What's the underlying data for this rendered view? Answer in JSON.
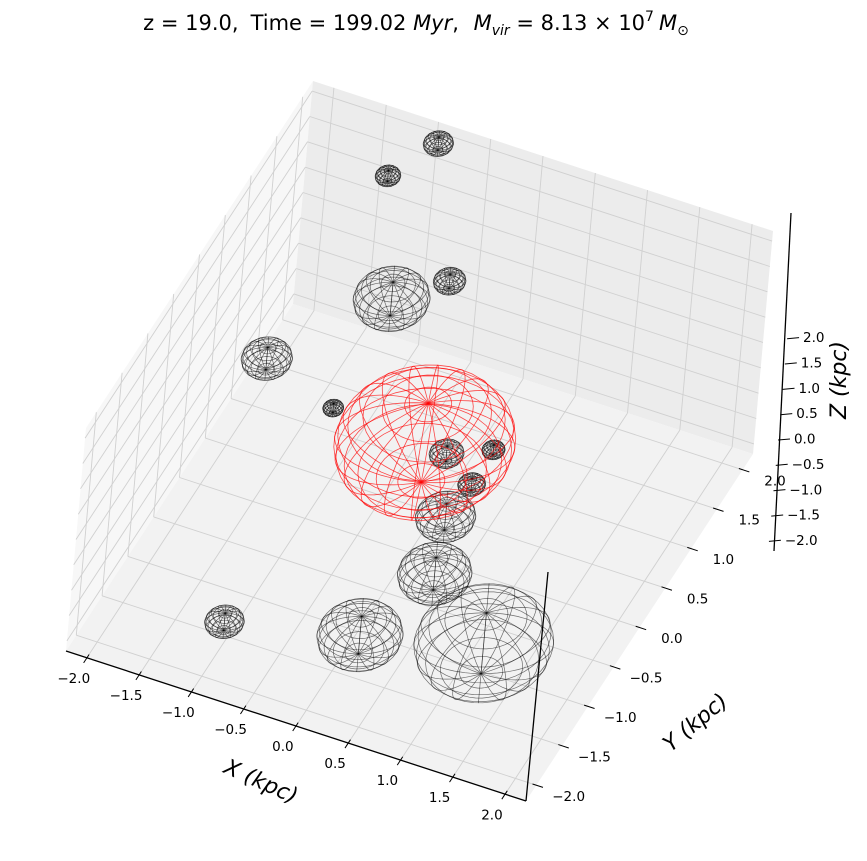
{
  "chart_data": {
    "type": "scatter",
    "title_parts": {
      "z_eq": "z = 19.0,",
      "time_label": "Time = 199.02 ",
      "time_unit": "Myr",
      "mvir_M": "M",
      "mvir_sub": "vir",
      "mvir_eq": " = 8.13 × 10",
      "mvir_exp": "7",
      "mvir_unit_M": "M",
      "mvir_unit_sub": "⊙"
    },
    "xlabel": "X (kpc)",
    "ylabel": "Y (kpc)",
    "zlabel": "Z (kpc)",
    "xlim": [
      -2.2,
      2.2
    ],
    "ylim": [
      -2.2,
      2.2
    ],
    "zlim": [
      -2.2,
      2.2
    ],
    "x_ticks": [
      "−2.0",
      "−1.5",
      "−1.0",
      "−0.5",
      "0.0",
      "0.5",
      "1.0",
      "1.5",
      "2.0"
    ],
    "y_ticks": [
      "−2.0",
      "−1.5",
      "−1.0",
      "−0.5",
      "0.0",
      "0.5",
      "1.0",
      "1.5",
      "2.0"
    ],
    "z_ticks": [
      "−2.0",
      "−1.5",
      "−1.0",
      "−0.5",
      "0.0",
      "0.5",
      "1.0",
      "1.5",
      "2.0"
    ],
    "grid": true,
    "colors": {
      "main_halo": "#ff0000",
      "subhalo": "#000000",
      "pane": "#f2f2f2",
      "grid": "#d0d0d0"
    },
    "main_halo": {
      "x": 0.05,
      "y": 0.0,
      "z": 0.0,
      "r": 0.78
    },
    "subhalos": [
      {
        "x": -0.9,
        "y": 2.0,
        "z": 2.15,
        "r": 0.13
      },
      {
        "x": -1.3,
        "y": 1.9,
        "z": 1.4,
        "r": 0.11
      },
      {
        "x": -0.75,
        "y": 0.9,
        "z": 0.9,
        "r": 0.33
      },
      {
        "x": -0.35,
        "y": 1.2,
        "z": 1.05,
        "r": 0.14
      },
      {
        "x": -1.55,
        "y": 0.15,
        "z": 0.35,
        "r": 0.22
      },
      {
        "x": -0.85,
        "y": 0.05,
        "z": 0.0,
        "r": 0.09
      },
      {
        "x": 0.2,
        "y": 0.15,
        "z": -0.35,
        "r": 0.15
      },
      {
        "x": 0.5,
        "y": 0.05,
        "z": -0.6,
        "r": 0.12
      },
      {
        "x": 0.55,
        "y": 0.35,
        "z": -0.35,
        "r": 0.1
      },
      {
        "x": 0.45,
        "y": -0.35,
        "z": -0.65,
        "r": 0.26
      },
      {
        "x": 0.5,
        "y": -0.6,
        "z": -1.35,
        "r": 0.32
      },
      {
        "x": 0.25,
        "y": -1.55,
        "z": -1.25,
        "r": 0.37
      },
      {
        "x": 1.2,
        "y": -1.05,
        "z": -1.55,
        "r": 0.6
      },
      {
        "x": -1.0,
        "y": -1.6,
        "z": -1.75,
        "r": 0.17
      }
    ]
  }
}
